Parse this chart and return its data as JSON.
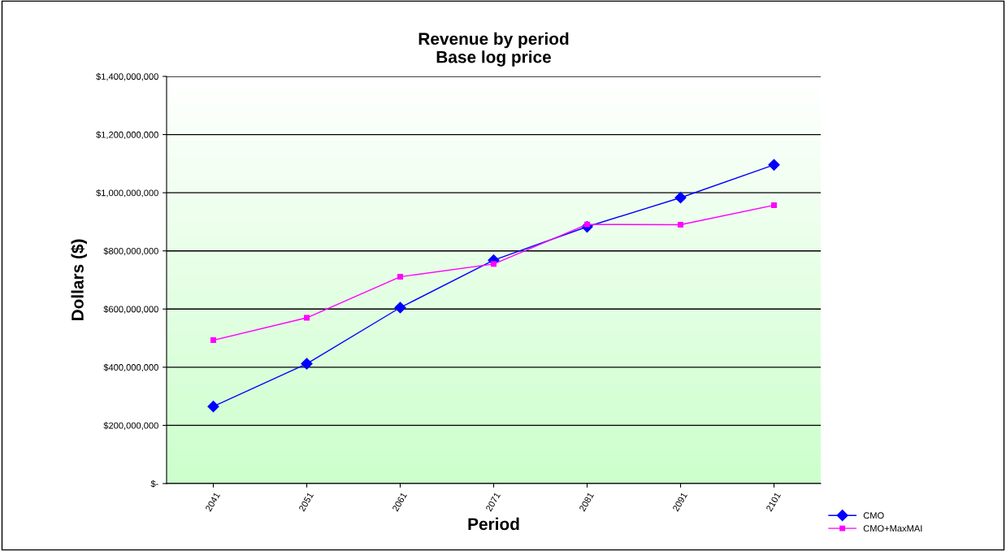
{
  "chart_data": {
    "type": "line",
    "title": "Revenue by period\nBase log price",
    "xlabel": "Period",
    "ylabel": "Dollars ($)",
    "categories": [
      "2041",
      "2051",
      "2061",
      "2071",
      "2081",
      "2091",
      "2101"
    ],
    "series": [
      {
        "name": "CMO",
        "color": "#0000ff",
        "marker": "diamond",
        "values": [
          265000000,
          412000000,
          605000000,
          768000000,
          883000000,
          983000000,
          1096000000
        ]
      },
      {
        "name": "CMO+MaxMAI",
        "color": "#ff00ff",
        "marker": "square",
        "values": [
          493000000,
          570000000,
          711000000,
          755000000,
          891000000,
          890000000,
          957000000
        ]
      }
    ],
    "ylim": [
      0,
      1400000000
    ],
    "yticks": [
      {
        "value": 0,
        "label": "$-"
      },
      {
        "value": 200000000,
        "label": "$200,000,000"
      },
      {
        "value": 400000000,
        "label": "$400,000,000"
      },
      {
        "value": 600000000,
        "label": "$600,000,000"
      },
      {
        "value": 800000000,
        "label": "$800,000,000"
      },
      {
        "value": 1000000000,
        "label": "$1,000,000,000"
      },
      {
        "value": 1200000000,
        "label": "$1,200,000,000"
      },
      {
        "value": 1400000000,
        "label": "$1,400,000,000"
      }
    ],
    "grid": "y",
    "legend": "bottom right"
  }
}
